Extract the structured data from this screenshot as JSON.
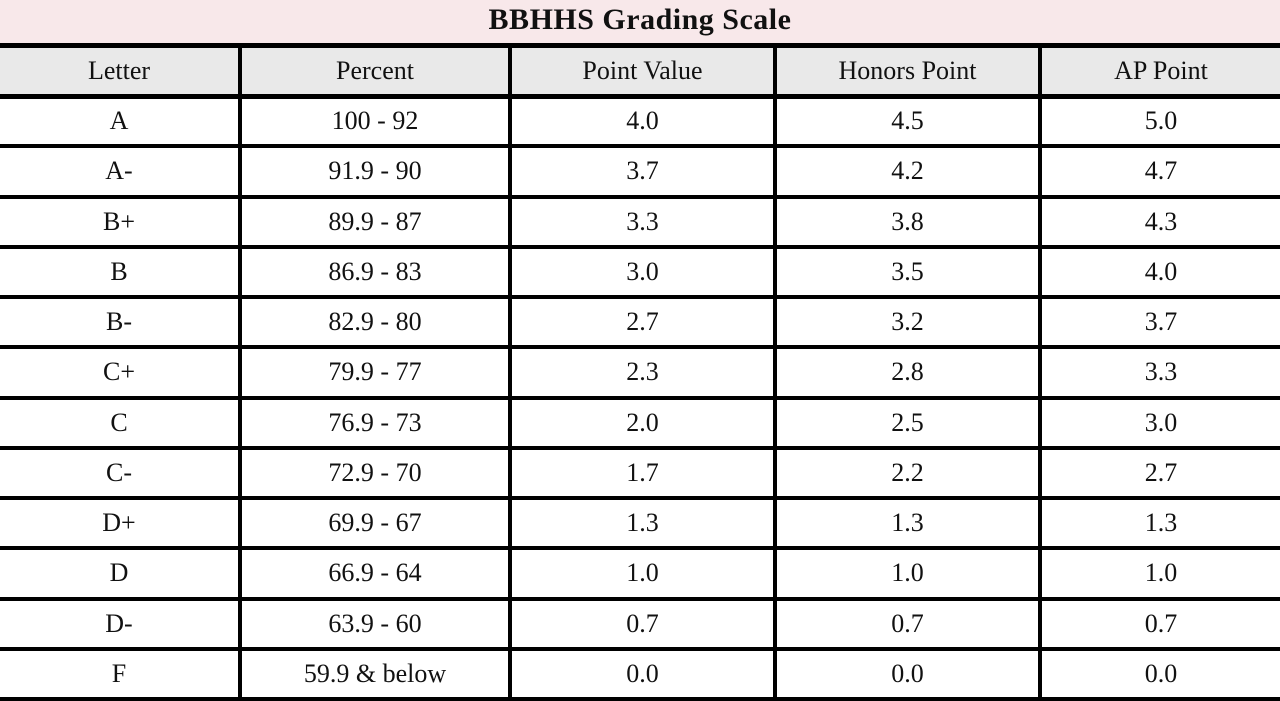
{
  "title": "BBHHS Grading Scale",
  "table": {
    "columns": [
      "Letter",
      "Percent",
      "Point Value",
      "Honors Point",
      "AP Point"
    ],
    "rows": [
      [
        "A",
        "100 - 92",
        "4.0",
        "4.5",
        "5.0"
      ],
      [
        "A-",
        "91.9 - 90",
        "3.7",
        "4.2",
        "4.7"
      ],
      [
        "B+",
        "89.9 - 87",
        "3.3",
        "3.8",
        "4.3"
      ],
      [
        "B",
        "86.9 - 83",
        "3.0",
        "3.5",
        "4.0"
      ],
      [
        "B-",
        "82.9 - 80",
        "2.7",
        "3.2",
        "3.7"
      ],
      [
        "C+",
        "79.9 - 77",
        "2.3",
        "2.8",
        "3.3"
      ],
      [
        "C",
        "76.9 - 73",
        "2.0",
        "2.5",
        "3.0"
      ],
      [
        "C-",
        "72.9 - 70",
        "1.7",
        "2.2",
        "2.7"
      ],
      [
        "D+",
        "69.9 - 67",
        "1.3",
        "1.3",
        "1.3"
      ],
      [
        "D",
        "66.9 - 64",
        "1.0",
        "1.0",
        "1.0"
      ],
      [
        "D-",
        "63.9 - 60",
        "0.7",
        "0.7",
        "0.7"
      ],
      [
        "F",
        "59.9 & below",
        "0.0",
        "0.0",
        "0.0"
      ]
    ]
  },
  "colors": {
    "title_bg": "#f8e8ea",
    "header_bg": "#e9e9e9",
    "border": "#000000",
    "row_bg": "#ffffff",
    "text": "#111111"
  }
}
